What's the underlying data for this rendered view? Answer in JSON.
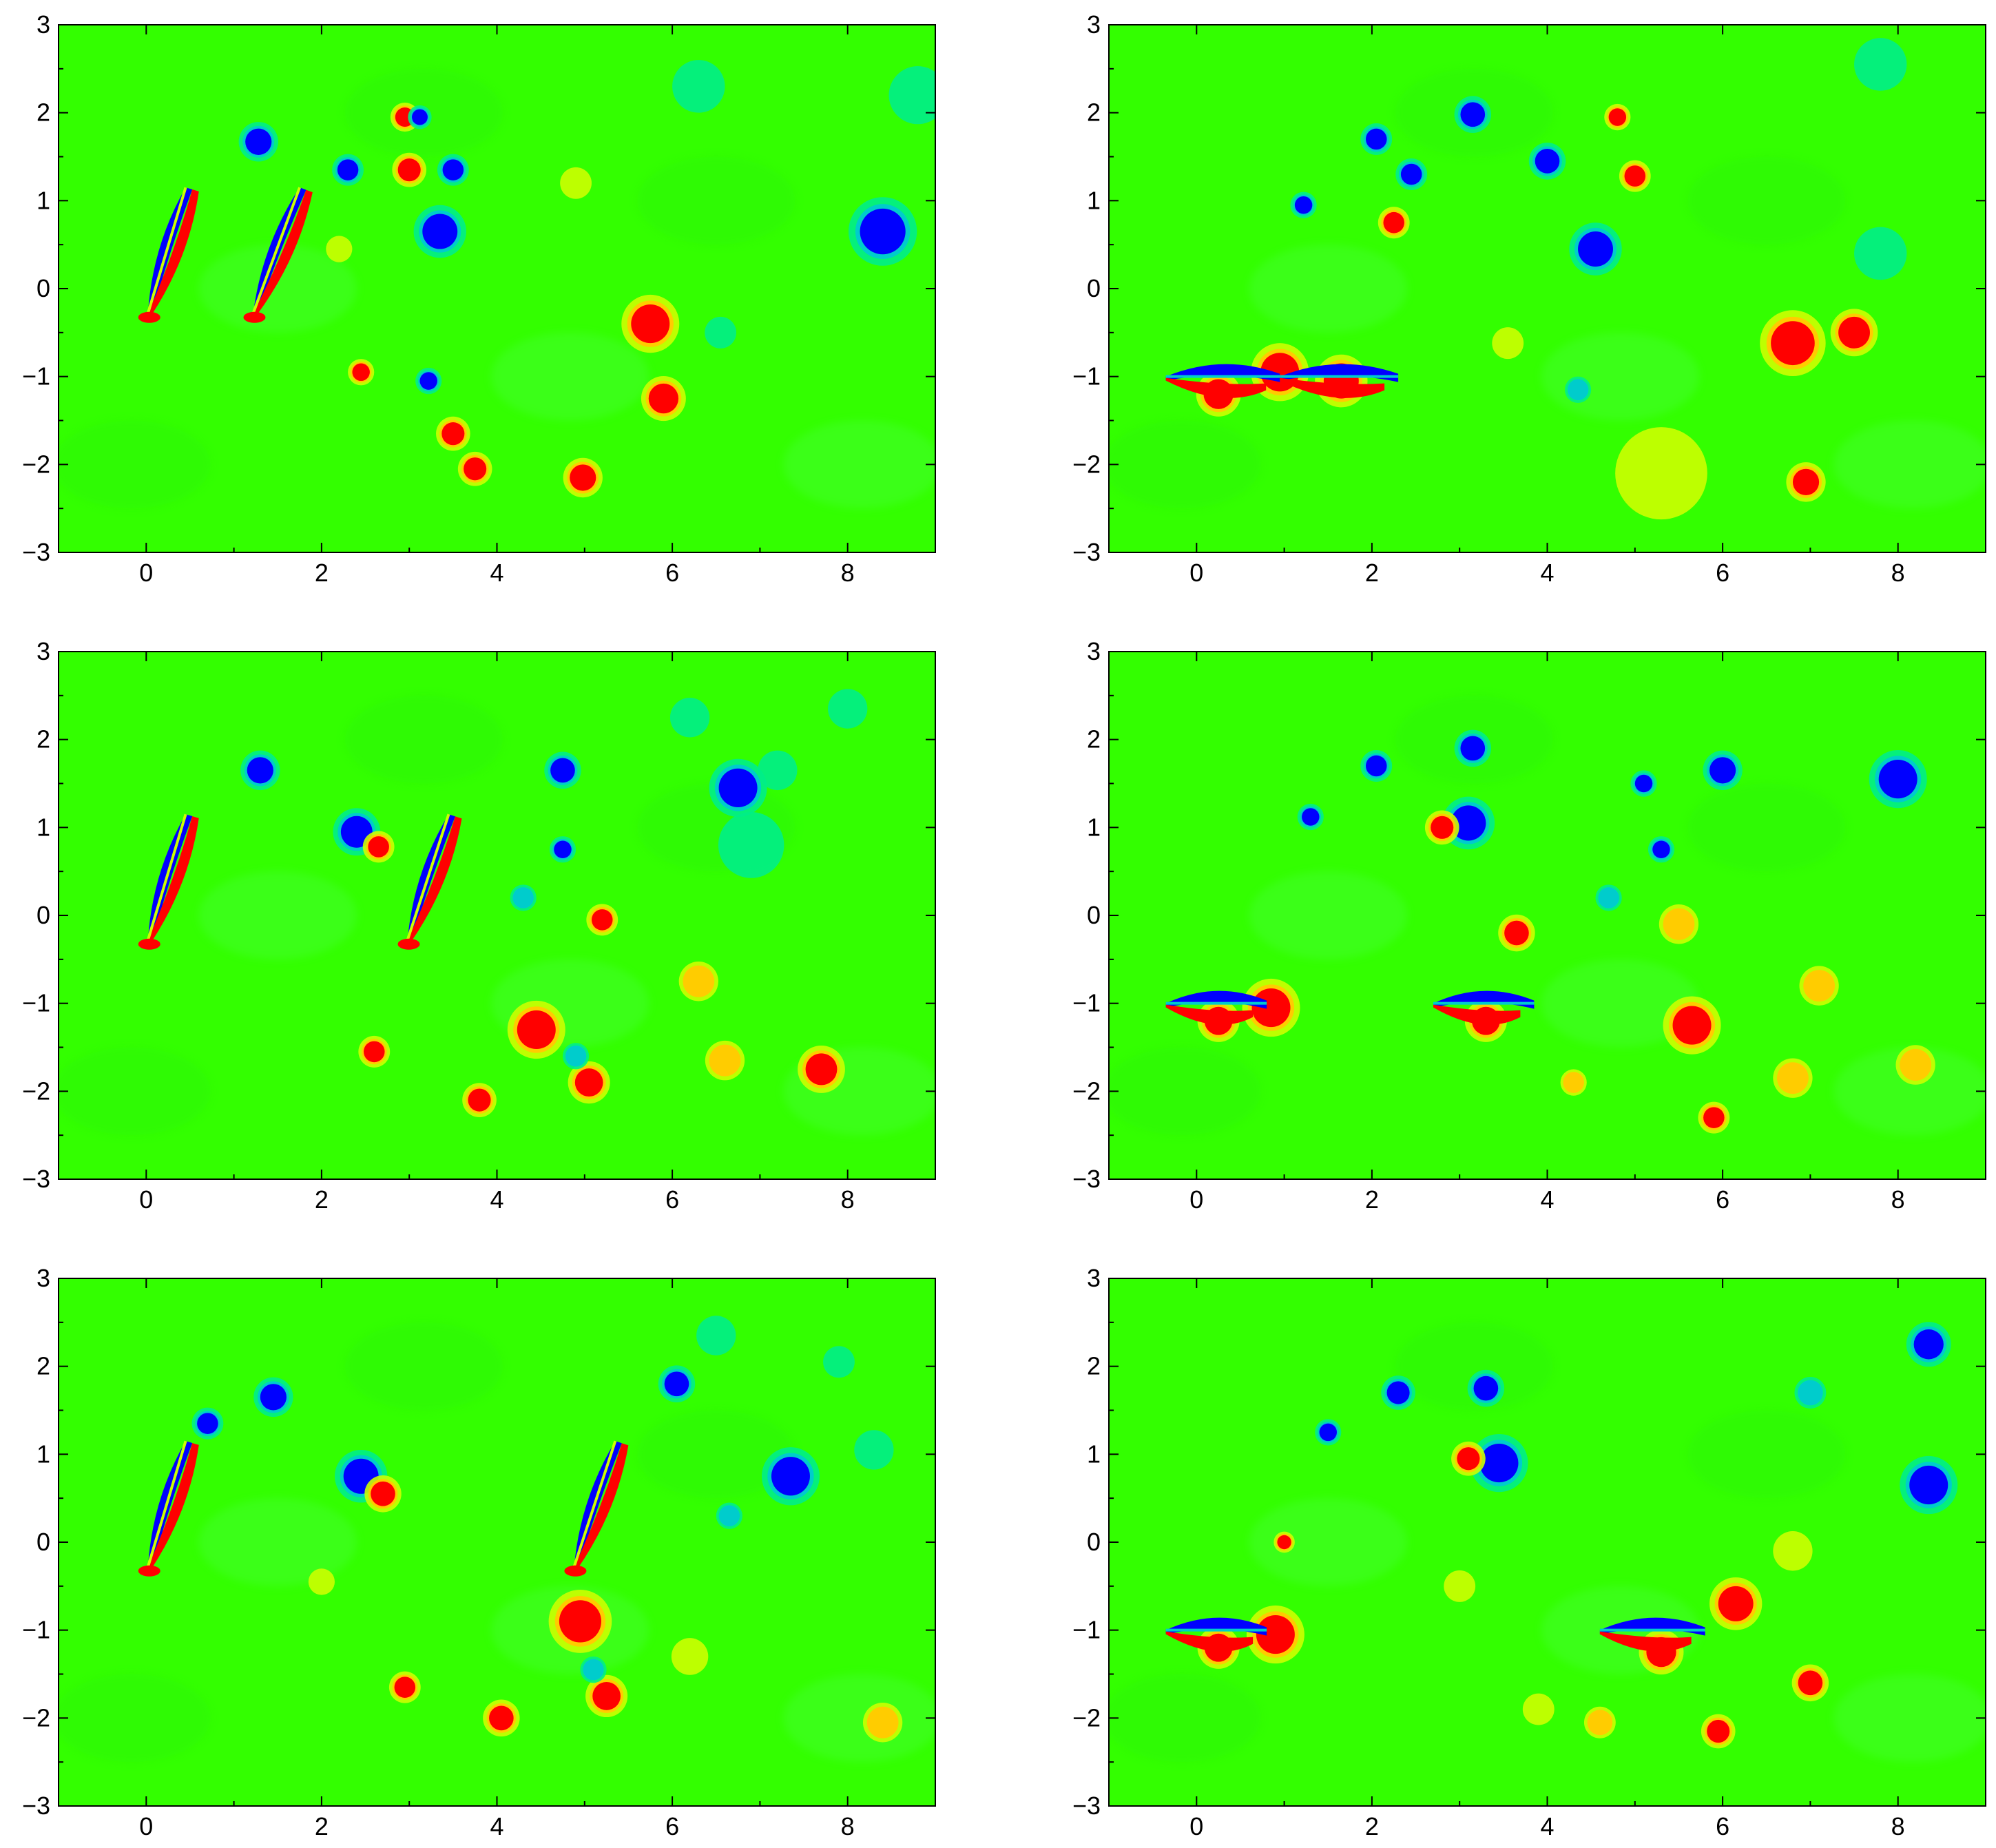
{
  "figure": {
    "layout": "3 rows x 2 columns",
    "colors": {
      "background": "#33ff00",
      "negative_core": "#0000ff",
      "negative_mid": "#00cccc",
      "negative_weak": "#00ee88",
      "positive_weak": "#ccff00",
      "positive_mid": "#ffcc00",
      "positive_core": "#ff0000",
      "axes": "#000000"
    }
  },
  "chart_data": [
    {
      "type": "heatmap",
      "panel": "row1-left",
      "xlim": [
        -1,
        9
      ],
      "ylim": [
        -3,
        3
      ],
      "xticks": [
        0,
        2,
        4,
        6,
        8
      ],
      "xtick_labels": [
        "0",
        "2",
        "4",
        "6",
        "8"
      ],
      "yticks": [
        3,
        2,
        1,
        0,
        -1,
        -2,
        -3
      ],
      "ytick_labels": [
        "3",
        "2",
        "1",
        "0",
        "−1",
        "−2",
        "−3"
      ],
      "foils": [
        {
          "kind": "pitched",
          "root": [
            0.02,
            -0.28
          ],
          "tip": [
            0.45,
            1.15
          ]
        },
        {
          "kind": "pitched",
          "root": [
            1.22,
            -0.28
          ],
          "tip": [
            1.75,
            1.15
          ]
        }
      ],
      "vortices": [
        {
          "x": 1.28,
          "y": 1.67,
          "sign": -1,
          "r": 0.15
        },
        {
          "x": 2.3,
          "y": 1.35,
          "sign": -1,
          "r": 0.12
        },
        {
          "x": 2.95,
          "y": 1.95,
          "sign": 1,
          "r": 0.11
        },
        {
          "x": 3.12,
          "y": 1.95,
          "sign": -1,
          "r": 0.09
        },
        {
          "x": 3.0,
          "y": 1.35,
          "sign": 1,
          "r": 0.13
        },
        {
          "x": 3.5,
          "y": 1.35,
          "sign": -1,
          "r": 0.12
        },
        {
          "x": 3.35,
          "y": 0.65,
          "sign": -1,
          "r": 0.2
        },
        {
          "x": 5.75,
          "y": -0.4,
          "sign": 1,
          "r": 0.22
        },
        {
          "x": 5.9,
          "y": -1.25,
          "sign": 1,
          "r": 0.17
        },
        {
          "x": 4.98,
          "y": -2.15,
          "sign": 1,
          "r": 0.15
        },
        {
          "x": 3.5,
          "y": -1.65,
          "sign": 1,
          "r": 0.13
        },
        {
          "x": 3.75,
          "y": -2.05,
          "sign": 1,
          "r": 0.13
        },
        {
          "x": 2.45,
          "y": -0.95,
          "sign": 1,
          "r": 0.1
        },
        {
          "x": 3.22,
          "y": -1.05,
          "sign": -1,
          "r": 0.1
        },
        {
          "x": 8.4,
          "y": 0.65,
          "sign": -1,
          "r": 0.26
        },
        {
          "x": 6.55,
          "y": -0.5,
          "sign": -0.5,
          "r": 0.12
        },
        {
          "x": 6.3,
          "y": 2.3,
          "sign": -0.5,
          "r": 0.2
        },
        {
          "x": 8.8,
          "y": 2.2,
          "sign": -0.5,
          "r": 0.22
        },
        {
          "x": 4.9,
          "y": 1.2,
          "sign": 0.5,
          "r": 0.12
        },
        {
          "x": 2.2,
          "y": 0.45,
          "sign": 0.5,
          "r": 0.1
        }
      ]
    },
    {
      "type": "heatmap",
      "panel": "row1-right",
      "xlim": [
        -1,
        9
      ],
      "ylim": [
        -3,
        3
      ],
      "xticks": [
        0,
        2,
        4,
        6,
        8
      ],
      "xtick_labels": [
        "0",
        "2",
        "4",
        "6",
        "8"
      ],
      "yticks": [
        3,
        2,
        1,
        0,
        -1,
        -2,
        -3
      ],
      "ytick_labels": [
        "3",
        "2",
        "1",
        "0",
        "−1",
        "−2",
        "−3"
      ],
      "foils": [
        {
          "kind": "flat",
          "x0": -0.35,
          "x1": 0.95,
          "y": -1.0
        },
        {
          "kind": "flat",
          "x0": 0.95,
          "x1": 2.3,
          "y": -1.0
        }
      ],
      "vortices": [
        {
          "x": 0.25,
          "y": -1.2,
          "sign": 1,
          "r": 0.17
        },
        {
          "x": 0.95,
          "y": -0.95,
          "sign": 1,
          "r": 0.22
        },
        {
          "x": 1.65,
          "y": -1.05,
          "sign": 1,
          "r": 0.2
        },
        {
          "x": 1.22,
          "y": 0.95,
          "sign": -1,
          "r": 0.1
        },
        {
          "x": 2.05,
          "y": 1.7,
          "sign": -1,
          "r": 0.12
        },
        {
          "x": 2.45,
          "y": 1.3,
          "sign": -1,
          "r": 0.12
        },
        {
          "x": 3.15,
          "y": 1.98,
          "sign": -1,
          "r": 0.14
        },
        {
          "x": 4.0,
          "y": 1.45,
          "sign": -1,
          "r": 0.14
        },
        {
          "x": 4.55,
          "y": 0.45,
          "sign": -1,
          "r": 0.2
        },
        {
          "x": 2.25,
          "y": 0.75,
          "sign": 1,
          "r": 0.12
        },
        {
          "x": 4.8,
          "y": 1.95,
          "sign": 1,
          "r": 0.1
        },
        {
          "x": 5.0,
          "y": 1.28,
          "sign": 1,
          "r": 0.12
        },
        {
          "x": 6.8,
          "y": -0.62,
          "sign": 1,
          "r": 0.25
        },
        {
          "x": 7.5,
          "y": -0.5,
          "sign": 1,
          "r": 0.18
        },
        {
          "x": 6.95,
          "y": -2.2,
          "sign": 1,
          "r": 0.15
        },
        {
          "x": 4.35,
          "y": -1.15,
          "sign": -0.7,
          "r": 0.1
        },
        {
          "x": 3.55,
          "y": -0.62,
          "sign": 0.5,
          "r": 0.12
        },
        {
          "x": 5.3,
          "y": -2.1,
          "sign": 0.5,
          "r": 0.35
        },
        {
          "x": 7.8,
          "y": 2.55,
          "sign": -0.5,
          "r": 0.2
        },
        {
          "x": 7.8,
          "y": 0.4,
          "sign": -0.5,
          "r": 0.2
        }
      ]
    },
    {
      "type": "heatmap",
      "panel": "row2-left",
      "xlim": [
        -1,
        9
      ],
      "ylim": [
        -3,
        3
      ],
      "xticks": [
        0,
        2,
        4,
        6,
        8
      ],
      "xtick_labels": [
        "0",
        "2",
        "4",
        "6",
        "8"
      ],
      "yticks": [
        3,
        2,
        1,
        0,
        -1,
        -2,
        -3
      ],
      "ytick_labels": [
        "3",
        "2",
        "1",
        "0",
        "−1",
        "−2",
        "−3"
      ],
      "foils": [
        {
          "kind": "pitched",
          "root": [
            0.02,
            -0.28
          ],
          "tip": [
            0.45,
            1.15
          ]
        },
        {
          "kind": "pitched",
          "root": [
            2.98,
            -0.28
          ],
          "tip": [
            3.45,
            1.15
          ]
        }
      ],
      "vortices": [
        {
          "x": 1.3,
          "y": 1.65,
          "sign": -1,
          "r": 0.15
        },
        {
          "x": 2.4,
          "y": 0.95,
          "sign": -1,
          "r": 0.18
        },
        {
          "x": 2.65,
          "y": 0.78,
          "sign": 1,
          "r": 0.12
        },
        {
          "x": 4.75,
          "y": 1.65,
          "sign": -1,
          "r": 0.14
        },
        {
          "x": 4.75,
          "y": 0.75,
          "sign": -1,
          "r": 0.1
        },
        {
          "x": 4.3,
          "y": 0.2,
          "sign": -0.7,
          "r": 0.1
        },
        {
          "x": 6.75,
          "y": 1.45,
          "sign": -1,
          "r": 0.22
        },
        {
          "x": 5.2,
          "y": -0.05,
          "sign": 1,
          "r": 0.12
        },
        {
          "x": 4.45,
          "y": -1.3,
          "sign": 1,
          "r": 0.22
        },
        {
          "x": 5.05,
          "y": -1.9,
          "sign": 1,
          "r": 0.16
        },
        {
          "x": 3.8,
          "y": -2.1,
          "sign": 1,
          "r": 0.13
        },
        {
          "x": 2.6,
          "y": -1.55,
          "sign": 1,
          "r": 0.12
        },
        {
          "x": 7.7,
          "y": -1.75,
          "sign": 1,
          "r": 0.18
        },
        {
          "x": 6.3,
          "y": -0.75,
          "sign": 0.7,
          "r": 0.15
        },
        {
          "x": 6.6,
          "y": -1.65,
          "sign": 0.7,
          "r": 0.15
        },
        {
          "x": 4.9,
          "y": -1.6,
          "sign": -0.7,
          "r": 0.1
        },
        {
          "x": 6.2,
          "y": 2.25,
          "sign": -0.5,
          "r": 0.15
        },
        {
          "x": 8.0,
          "y": 2.35,
          "sign": -0.5,
          "r": 0.15
        },
        {
          "x": 7.2,
          "y": 1.65,
          "sign": -0.5,
          "r": 0.15
        },
        {
          "x": 6.9,
          "y": 0.8,
          "sign": -0.4,
          "r": 0.25
        }
      ]
    },
    {
      "type": "heatmap",
      "panel": "row2-right",
      "xlim": [
        -1,
        9
      ],
      "ylim": [
        -3,
        3
      ],
      "xticks": [
        0,
        2,
        4,
        6,
        8
      ],
      "xtick_labels": [
        "0",
        "2",
        "4",
        "6",
        "8"
      ],
      "yticks": [
        3,
        2,
        1,
        0,
        -1,
        -2,
        -3
      ],
      "ytick_labels": [
        "3",
        "2",
        "1",
        "0",
        "−1",
        "−2",
        "−3"
      ],
      "foils": [
        {
          "kind": "flat",
          "x0": -0.35,
          "x1": 0.8,
          "y": -1.0
        },
        {
          "kind": "flat",
          "x0": 2.7,
          "x1": 3.85,
          "y": -1.0
        }
      ],
      "vortices": [
        {
          "x": 0.25,
          "y": -1.2,
          "sign": 1,
          "r": 0.16
        },
        {
          "x": 0.85,
          "y": -1.05,
          "sign": 1,
          "r": 0.22
        },
        {
          "x": 3.3,
          "y": -1.2,
          "sign": 1,
          "r": 0.16
        },
        {
          "x": 1.3,
          "y": 1.12,
          "sign": -1,
          "r": 0.1
        },
        {
          "x": 2.05,
          "y": 1.7,
          "sign": -1,
          "r": 0.12
        },
        {
          "x": 3.15,
          "y": 1.9,
          "sign": -1,
          "r": 0.14
        },
        {
          "x": 3.1,
          "y": 1.05,
          "sign": -1,
          "r": 0.2
        },
        {
          "x": 2.8,
          "y": 1.0,
          "sign": 1,
          "r": 0.13
        },
        {
          "x": 5.1,
          "y": 1.5,
          "sign": -1,
          "r": 0.1
        },
        {
          "x": 6.0,
          "y": 1.65,
          "sign": -1,
          "r": 0.15
        },
        {
          "x": 8.0,
          "y": 1.55,
          "sign": -1,
          "r": 0.22
        },
        {
          "x": 5.3,
          "y": 0.75,
          "sign": -1,
          "r": 0.1
        },
        {
          "x": 4.7,
          "y": 0.2,
          "sign": -0.7,
          "r": 0.1
        },
        {
          "x": 3.65,
          "y": -0.2,
          "sign": 1,
          "r": 0.14
        },
        {
          "x": 5.65,
          "y": -1.25,
          "sign": 1,
          "r": 0.22
        },
        {
          "x": 5.9,
          "y": -2.3,
          "sign": 1,
          "r": 0.12
        },
        {
          "x": 6.8,
          "y": -1.85,
          "sign": 0.8,
          "r": 0.15
        },
        {
          "x": 4.3,
          "y": -1.9,
          "sign": 0.7,
          "r": 0.1
        },
        {
          "x": 5.5,
          "y": -0.1,
          "sign": 0.7,
          "r": 0.15
        },
        {
          "x": 7.1,
          "y": -0.8,
          "sign": 0.7,
          "r": 0.15
        },
        {
          "x": 8.2,
          "y": -1.7,
          "sign": 0.6,
          "r": 0.15
        }
      ]
    },
    {
      "type": "heatmap",
      "panel": "row3-left",
      "xlim": [
        -1,
        9
      ],
      "ylim": [
        -3,
        3
      ],
      "xticks": [
        0,
        2,
        4,
        6,
        8
      ],
      "xtick_labels": [
        "0",
        "2",
        "4",
        "6",
        "8"
      ],
      "yticks": [
        3,
        2,
        1,
        0,
        -1,
        -2,
        -3
      ],
      "ytick_labels": [
        "3",
        "2",
        "1",
        "0",
        "−1",
        "−2",
        "−3"
      ],
      "foils": [
        {
          "kind": "pitched",
          "root": [
            0.02,
            -0.28
          ],
          "tip": [
            0.45,
            1.15
          ]
        },
        {
          "kind": "pitched",
          "root": [
            4.88,
            -0.28
          ],
          "tip": [
            5.35,
            1.15
          ]
        }
      ],
      "vortices": [
        {
          "x": 0.7,
          "y": 1.35,
          "sign": -1,
          "r": 0.12
        },
        {
          "x": 1.45,
          "y": 1.65,
          "sign": -1,
          "r": 0.15
        },
        {
          "x": 2.45,
          "y": 0.75,
          "sign": -1,
          "r": 0.2
        },
        {
          "x": 2.7,
          "y": 0.55,
          "sign": 1,
          "r": 0.14
        },
        {
          "x": 6.05,
          "y": 1.8,
          "sign": -1,
          "r": 0.14
        },
        {
          "x": 7.35,
          "y": 0.75,
          "sign": -1,
          "r": 0.22
        },
        {
          "x": 6.65,
          "y": 0.3,
          "sign": -0.7,
          "r": 0.1
        },
        {
          "x": 4.95,
          "y": -0.9,
          "sign": 1,
          "r": 0.24
        },
        {
          "x": 5.25,
          "y": -1.75,
          "sign": 1,
          "r": 0.16
        },
        {
          "x": 4.05,
          "y": -2.0,
          "sign": 1,
          "r": 0.14
        },
        {
          "x": 2.95,
          "y": -1.65,
          "sign": 1,
          "r": 0.12
        },
        {
          "x": 5.1,
          "y": -1.45,
          "sign": -0.7,
          "r": 0.1
        },
        {
          "x": 2.0,
          "y": -0.45,
          "sign": 0.5,
          "r": 0.1
        },
        {
          "x": 6.5,
          "y": 2.35,
          "sign": -0.5,
          "r": 0.15
        },
        {
          "x": 7.9,
          "y": 2.05,
          "sign": -0.5,
          "r": 0.12
        },
        {
          "x": 8.3,
          "y": 1.05,
          "sign": -0.5,
          "r": 0.15
        },
        {
          "x": 8.4,
          "y": -2.05,
          "sign": 0.6,
          "r": 0.15
        },
        {
          "x": 6.2,
          "y": -1.3,
          "sign": 0.5,
          "r": 0.14
        }
      ]
    },
    {
      "type": "heatmap",
      "panel": "row3-right",
      "xlim": [
        -1,
        9
      ],
      "ylim": [
        -3,
        3
      ],
      "xticks": [
        0,
        2,
        4,
        6,
        8
      ],
      "xtick_labels": [
        "0",
        "2",
        "4",
        "6",
        "8"
      ],
      "yticks": [
        3,
        2,
        1,
        0,
        -1,
        -2,
        -3
      ],
      "ytick_labels": [
        "3",
        "2",
        "1",
        "0",
        "−1",
        "−2",
        "−3"
      ],
      "foils": [
        {
          "kind": "flat",
          "x0": -0.35,
          "x1": 0.8,
          "y": -1.0
        },
        {
          "kind": "flat",
          "x0": 4.6,
          "x1": 5.8,
          "y": -1.0
        }
      ],
      "vortices": [
        {
          "x": 0.25,
          "y": -1.2,
          "sign": 1,
          "r": 0.16
        },
        {
          "x": 0.9,
          "y": -1.05,
          "sign": 1,
          "r": 0.22
        },
        {
          "x": 5.3,
          "y": -1.25,
          "sign": 1,
          "r": 0.17
        },
        {
          "x": 6.15,
          "y": -0.7,
          "sign": 1,
          "r": 0.2
        },
        {
          "x": 1.5,
          "y": 1.25,
          "sign": -1,
          "r": 0.1
        },
        {
          "x": 2.3,
          "y": 1.7,
          "sign": -1,
          "r": 0.13
        },
        {
          "x": 3.3,
          "y": 1.75,
          "sign": -1,
          "r": 0.14
        },
        {
          "x": 3.45,
          "y": 0.9,
          "sign": -1,
          "r": 0.22
        },
        {
          "x": 3.1,
          "y": 0.95,
          "sign": 1,
          "r": 0.13
        },
        {
          "x": 8.35,
          "y": 2.25,
          "sign": -1,
          "r": 0.17
        },
        {
          "x": 8.35,
          "y": 0.65,
          "sign": -1,
          "r": 0.22
        },
        {
          "x": 7.0,
          "y": 1.7,
          "sign": -0.7,
          "r": 0.12
        },
        {
          "x": 7.0,
          "y": -1.6,
          "sign": 1,
          "r": 0.14
        },
        {
          "x": 5.95,
          "y": -2.15,
          "sign": 1,
          "r": 0.13
        },
        {
          "x": 4.6,
          "y": -2.05,
          "sign": 0.8,
          "r": 0.12
        },
        {
          "x": 1.0,
          "y": 0.0,
          "sign": 1,
          "r": 0.08
        },
        {
          "x": 3.0,
          "y": -0.5,
          "sign": 0.5,
          "r": 0.12
        },
        {
          "x": 6.8,
          "y": -0.1,
          "sign": 0.5,
          "r": 0.15
        },
        {
          "x": 3.9,
          "y": -1.9,
          "sign": 0.5,
          "r": 0.12
        }
      ]
    }
  ]
}
